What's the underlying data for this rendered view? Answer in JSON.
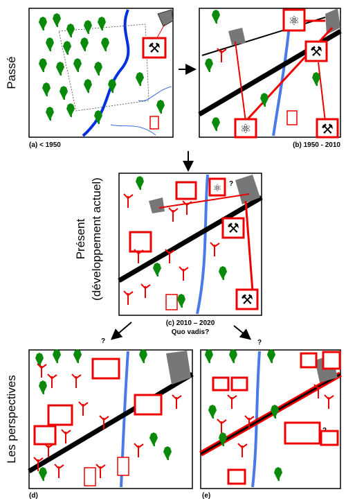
{
  "labels": {
    "past": "Passé",
    "present": "Présent",
    "present_sub": "(développement actuel)",
    "future": "Les perspectives"
  },
  "captions": {
    "a": "(a) < 1950",
    "b": "(b) 1950 - 2010",
    "c": "(c) 2010 – 2020",
    "c_sub": "Quo vadis?",
    "d": "(d)",
    "e": "(e)"
  },
  "marks": {
    "q_left": "?",
    "q_right": "?",
    "q_c": "?",
    "q_e": "?"
  }
}
